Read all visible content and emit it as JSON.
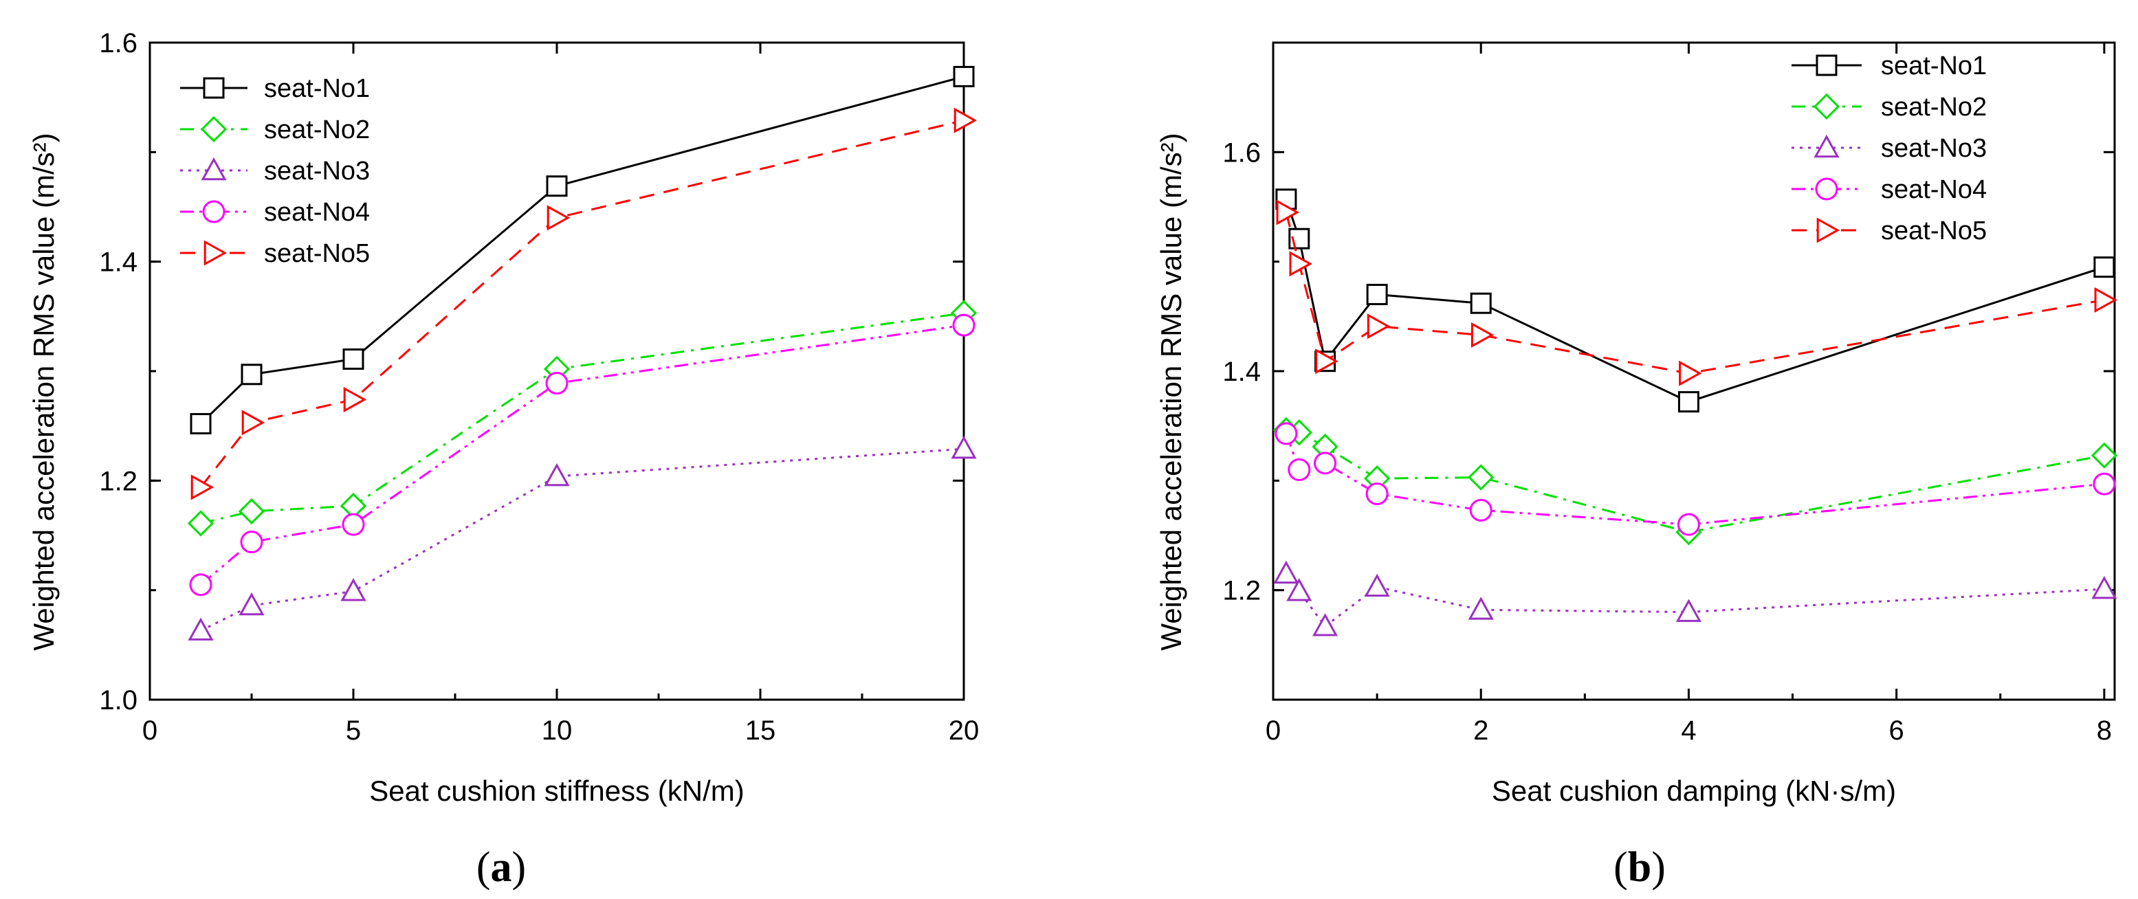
{
  "chart_data": [
    {
      "type": "line",
      "panel_label": "(a)",
      "panel_letter": "a",
      "xlabel": "Seat cushion stiffness (kN/m)",
      "ylabel": "Weighted acceleration RMS value (m/s²)",
      "xlim": [
        0,
        20
      ],
      "ylim": [
        1.0,
        1.6
      ],
      "xticks": [
        0,
        5,
        10,
        15,
        20
      ],
      "xtick_labels": [
        "0",
        "5",
        "10",
        "15",
        "20"
      ],
      "yticks": [
        1.0,
        1.2,
        1.4,
        1.6
      ],
      "ytick_labels": [
        "1.0",
        "1.2",
        "1.4",
        "1.6"
      ],
      "legend_position": "top-left",
      "x": [
        1.25,
        2.5,
        5,
        10,
        20
      ],
      "series": [
        {
          "name": "seat-No1",
          "color": "#000000",
          "marker": "square",
          "dash": "solid",
          "values": [
            1.252,
            1.297,
            1.311,
            1.469,
            1.569
          ]
        },
        {
          "name": "seat-No2",
          "color": "#00e000",
          "marker": "diamond",
          "dash": "dashdot",
          "values": [
            1.161,
            1.172,
            1.177,
            1.302,
            1.353
          ]
        },
        {
          "name": "seat-No3",
          "color": "#9b30c0",
          "marker": "triangle-up",
          "dash": "dot",
          "values": [
            1.063,
            1.086,
            1.099,
            1.204,
            1.229
          ]
        },
        {
          "name": "seat-No4",
          "color": "#ff00ff",
          "marker": "circle",
          "dash": "dashdotdot",
          "values": [
            1.105,
            1.144,
            1.16,
            1.289,
            1.342
          ]
        },
        {
          "name": "seat-No5",
          "color": "#ff0000",
          "marker": "triangle-right",
          "dash": "dash",
          "values": [
            1.194,
            1.253,
            1.274,
            1.44,
            1.529
          ]
        }
      ]
    },
    {
      "type": "line",
      "panel_label": "(b)",
      "panel_letter": "b",
      "xlabel": "Seat cushion damping (kN·s/m)",
      "ylabel": "Weighted acceleration RMS value (m/s²)",
      "xlim": [
        0,
        8.1
      ],
      "ylim": [
        1.1,
        1.7
      ],
      "xticks": [
        0,
        2,
        4,
        6,
        8
      ],
      "xtick_labels": [
        "0",
        "2",
        "4",
        "6",
        "8"
      ],
      "yticks": [
        1.2,
        1.4,
        1.6
      ],
      "ytick_labels": [
        "1.2",
        "1.4",
        "1.6"
      ],
      "legend_position": "top-right",
      "x": [
        0.125,
        0.25,
        0.5,
        1,
        2,
        4,
        8
      ],
      "series": [
        {
          "name": "seat-No1",
          "color": "#000000",
          "marker": "square",
          "dash": "solid",
          "values": [
            1.557,
            1.521,
            1.409,
            1.47,
            1.462,
            1.372,
            1.495
          ]
        },
        {
          "name": "seat-No2",
          "color": "#00e000",
          "marker": "diamond",
          "dash": "dashdot",
          "values": [
            1.346,
            1.344,
            1.331,
            1.302,
            1.303,
            1.253,
            1.323
          ]
        },
        {
          "name": "seat-No3",
          "color": "#9b30c0",
          "marker": "triangle-up",
          "dash": "dot",
          "values": [
            1.215,
            1.199,
            1.167,
            1.203,
            1.182,
            1.18,
            1.201
          ]
        },
        {
          "name": "seat-No4",
          "color": "#ff00ff",
          "marker": "circle",
          "dash": "dashdotdot",
          "values": [
            1.343,
            1.31,
            1.316,
            1.288,
            1.273,
            1.26,
            1.297
          ]
        },
        {
          "name": "seat-No5",
          "color": "#ff0000",
          "marker": "triangle-right",
          "dash": "dash",
          "values": [
            1.545,
            1.498,
            1.409,
            1.441,
            1.433,
            1.398,
            1.465
          ]
        }
      ]
    }
  ]
}
